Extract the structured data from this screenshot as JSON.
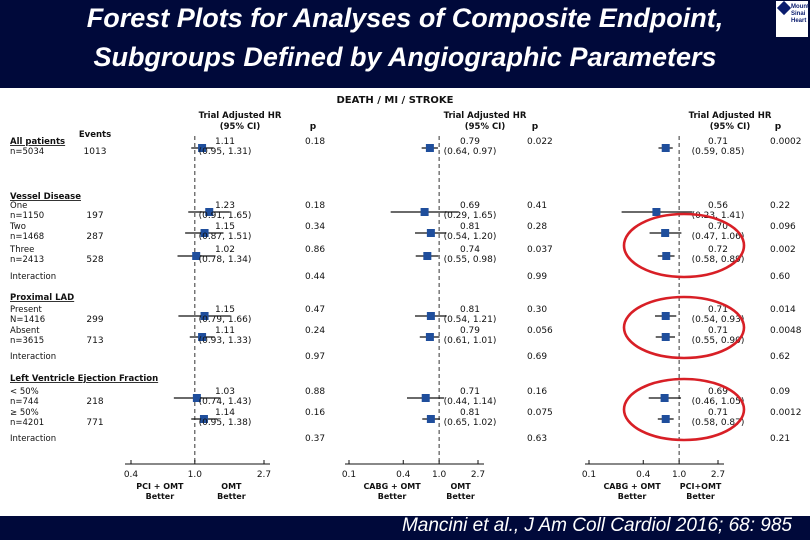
{
  "slide": {
    "title_line1": "Forest Plots for Analyses of Composite Endpoint,",
    "title_line2": "Subgroups Defined by Angiographic Parameters",
    "citation": "Mancini et al., J Am Coll Cardiol 2016; 68: 985",
    "logo_text": [
      "Mount",
      "Sinai",
      "Heart"
    ],
    "colors": {
      "background": "#00093a",
      "marker": "#1f4e9c",
      "circle": "#d81f26"
    }
  },
  "chart_data": {
    "type": "forest",
    "title": "DEATH / MI / STROKE",
    "headers": {
      "events": "Events",
      "hr": [
        "Trial Adjusted HR",
        "(95% CI)"
      ],
      "p": "p"
    },
    "rows": [
      {
        "key": "all",
        "label": "All patients",
        "sublabel": "n=5034",
        "events": "1013",
        "header": true,
        "hr": [
          "1.11 (0.95, 1.31)",
          "0.79 (0.64, 0.97)",
          "0.71 (0.59, 0.85)"
        ],
        "p": [
          "0.18",
          "0.022",
          "0.0002"
        ]
      },
      {
        "key": "vd",
        "label": "Vessel Disease",
        "section": true
      },
      {
        "key": "vd_one",
        "label": "One",
        "sublabel": "n=1150",
        "events": "197",
        "hr": [
          "1.23 (0.91, 1.65)",
          "0.69 (0.29, 1.65)",
          "0.56 (0.23, 1.41)"
        ],
        "p": [
          "0.18",
          "0.41",
          "0.22"
        ]
      },
      {
        "key": "vd_two",
        "label": "Two",
        "sublabel": "n=1468",
        "events": "287",
        "hr": [
          "1.15 (0.87, 1.51)",
          "0.81 (0.54, 1.20)",
          "0.70 (0.47, 1.06)"
        ],
        "p": [
          "0.34",
          "0.28",
          "0.096"
        ]
      },
      {
        "key": "vd_three",
        "label": "Three",
        "sublabel": "n=2413",
        "events": "528",
        "hr": [
          "1.02 (0.78, 1.34)",
          "0.74 (0.55, 0.98)",
          "0.72 (0.58, 0.89)"
        ],
        "p": [
          "0.86",
          "0.037",
          "0.002"
        ]
      },
      {
        "key": "vd_int",
        "label": "Interaction",
        "interaction": true,
        "p": [
          "0.44",
          "0.99",
          "0.60"
        ]
      },
      {
        "key": "lad",
        "label": "Proximal LAD",
        "section": true
      },
      {
        "key": "lad_p",
        "label": "Present",
        "sublabel": "N=1416",
        "events": "299",
        "hr": [
          "1.15 (0.79, 1.66)",
          "0.81 (0.54, 1.21)",
          "0.71 (0.54, 0.93)"
        ],
        "p": [
          "0.47",
          "0.30",
          "0.014"
        ]
      },
      {
        "key": "lad_a",
        "label": "Absent",
        "sublabel": "n=3615",
        "events": "713",
        "hr": [
          "1.11 (0.93, 1.33)",
          "0.79 (0.61, 1.01)",
          "0.71 (0.55, 0.90)"
        ],
        "p": [
          "0.24",
          "0.056",
          "0.0048"
        ]
      },
      {
        "key": "lad_int",
        "label": "Interaction",
        "interaction": true,
        "p": [
          "0.97",
          "0.69",
          "0.62"
        ]
      },
      {
        "key": "lvef",
        "label": "Left Ventricle Ejection Fraction",
        "section": true
      },
      {
        "key": "lv_lo",
        "label": "< 50%",
        "sublabel": "n=744",
        "events": "218",
        "hr": [
          "1.03 (0.74, 1.43)",
          "0.71 (0.44, 1.14)",
          "0.69 (0.46, 1.05)"
        ],
        "p": [
          "0.88",
          "0.16",
          "0.09"
        ]
      },
      {
        "key": "lv_hi",
        "label": "≥ 50%",
        "sublabel": "n=4201",
        "events": "771",
        "hr": [
          "1.14 (0.95, 1.38)",
          "0.81 (0.65, 1.02)",
          "0.71 (0.58, 0.87)"
        ],
        "p": [
          "0.16",
          "0.075",
          "0.0012"
        ]
      },
      {
        "key": "lv_int",
        "label": "Interaction",
        "interaction": true,
        "p": [
          "0.37",
          "0.63",
          "0.21"
        ]
      }
    ],
    "panels": [
      {
        "ticks": [
          "0.4",
          "1.0",
          "2.7"
        ],
        "xlim": [
          0.4,
          2.7
        ],
        "xscale": "log",
        "reference": 1.0,
        "hr": [
          [
            1.11,
            0.95,
            1.31
          ],
          [
            1.23,
            0.91,
            1.65
          ],
          [
            1.15,
            0.87,
            1.51
          ],
          [
            1.02,
            0.78,
            1.34
          ],
          [
            1.15,
            0.79,
            1.66
          ],
          [
            1.11,
            0.93,
            1.33
          ],
          [
            1.03,
            0.74,
            1.43
          ],
          [
            1.14,
            0.95,
            1.38
          ]
        ],
        "xlabel_left": [
          "PCI + OMT",
          "Better"
        ],
        "xlabel_right": [
          "OMT",
          "Better"
        ]
      },
      {
        "ticks": [
          "0.1",
          "0.4",
          "1.0",
          "2.7"
        ],
        "xlim": [
          0.1,
          2.7
        ],
        "xscale": "log",
        "reference": 1.0,
        "hr": [
          [
            0.79,
            0.64,
            0.97
          ],
          [
            0.69,
            0.29,
            1.65
          ],
          [
            0.81,
            0.54,
            1.2
          ],
          [
            0.74,
            0.55,
            0.98
          ],
          [
            0.81,
            0.54,
            1.21
          ],
          [
            0.79,
            0.61,
            1.01
          ],
          [
            0.71,
            0.44,
            1.14
          ],
          [
            0.81,
            0.65,
            1.02
          ]
        ],
        "xlabel_left": [
          "CABG + OMT",
          "Better"
        ],
        "xlabel_right": [
          "OMT",
          "Better"
        ]
      },
      {
        "ticks": [
          "0.1",
          "0.4",
          "1.0",
          "2.7"
        ],
        "xlim": [
          0.1,
          2.7
        ],
        "xscale": "log",
        "reference": 1.0,
        "hr": [
          [
            0.71,
            0.59,
            0.85
          ],
          [
            0.56,
            0.23,
            1.41
          ],
          [
            0.7,
            0.47,
            1.06
          ],
          [
            0.72,
            0.58,
            0.89
          ],
          [
            0.71,
            0.54,
            0.93
          ],
          [
            0.71,
            0.55,
            0.9
          ],
          [
            0.69,
            0.46,
            1.05
          ],
          [
            0.71,
            0.58,
            0.87
          ]
        ],
        "xlabel_left": [
          "CABG + OMT",
          "Better"
        ],
        "xlabel_right": [
          "PCI+OMT",
          "Better"
        ]
      }
    ],
    "highlighted_rows": [
      [
        "vd_two",
        "vd_three"
      ],
      [
        "lad_p",
        "lad_a"
      ],
      [
        "lv_lo",
        "lv_hi"
      ]
    ]
  }
}
